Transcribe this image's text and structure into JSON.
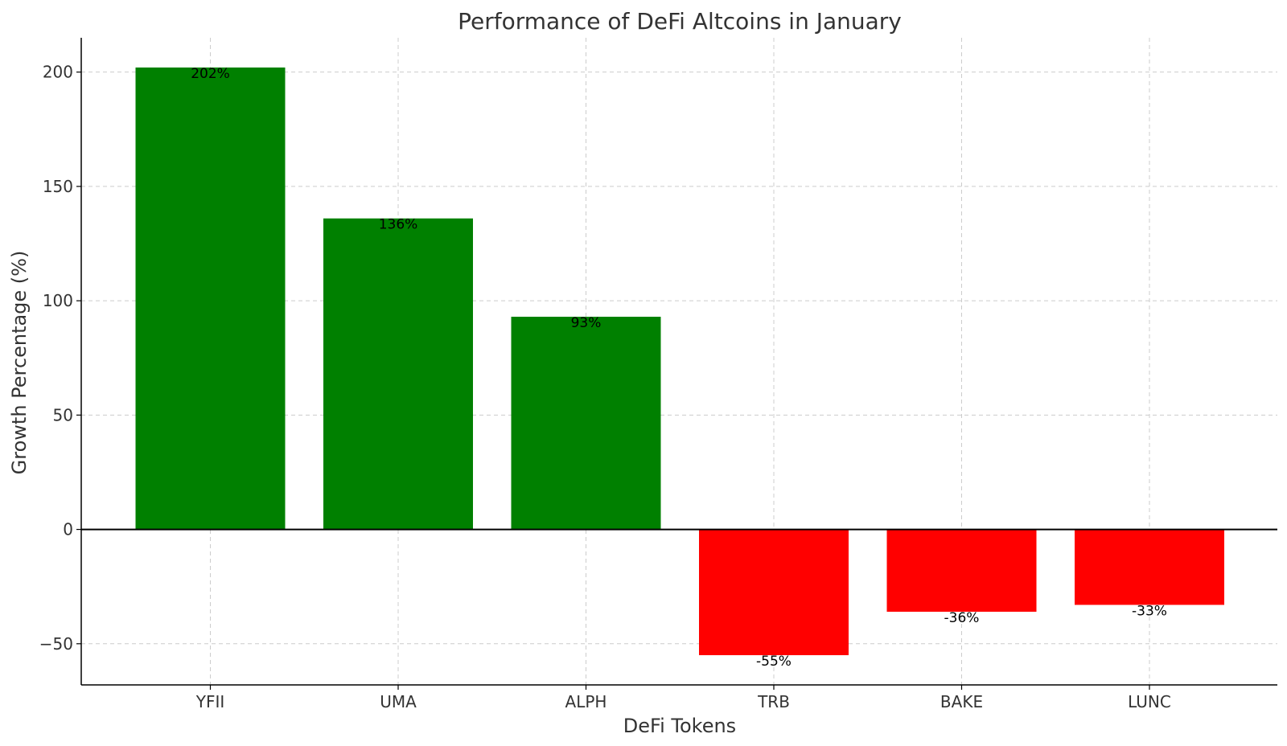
{
  "chart_data": {
    "type": "bar",
    "title": "Performance of DeFi Altcoins in January",
    "xlabel": "DeFi Tokens",
    "ylabel": "Growth Percentage (%)",
    "categories": [
      "YFII",
      "UMA",
      "ALPH",
      "TRB",
      "BAKE",
      "LUNC"
    ],
    "values": [
      202,
      136,
      93,
      -55,
      -36,
      -33
    ],
    "data_labels": [
      "202%",
      "136%",
      "93%",
      "-55%",
      "-36%",
      "-33%"
    ],
    "colors": [
      "#008000",
      "#008000",
      "#008000",
      "#ff0000",
      "#ff0000",
      "#ff0000"
    ],
    "ylim": [
      -68,
      215
    ],
    "yticks": [
      -50,
      0,
      50,
      100,
      150,
      200
    ],
    "ytick_labels": [
      "−50",
      "0",
      "50",
      "100",
      "150",
      "200"
    ],
    "grid": true,
    "zero_line": true,
    "legend": "none"
  }
}
